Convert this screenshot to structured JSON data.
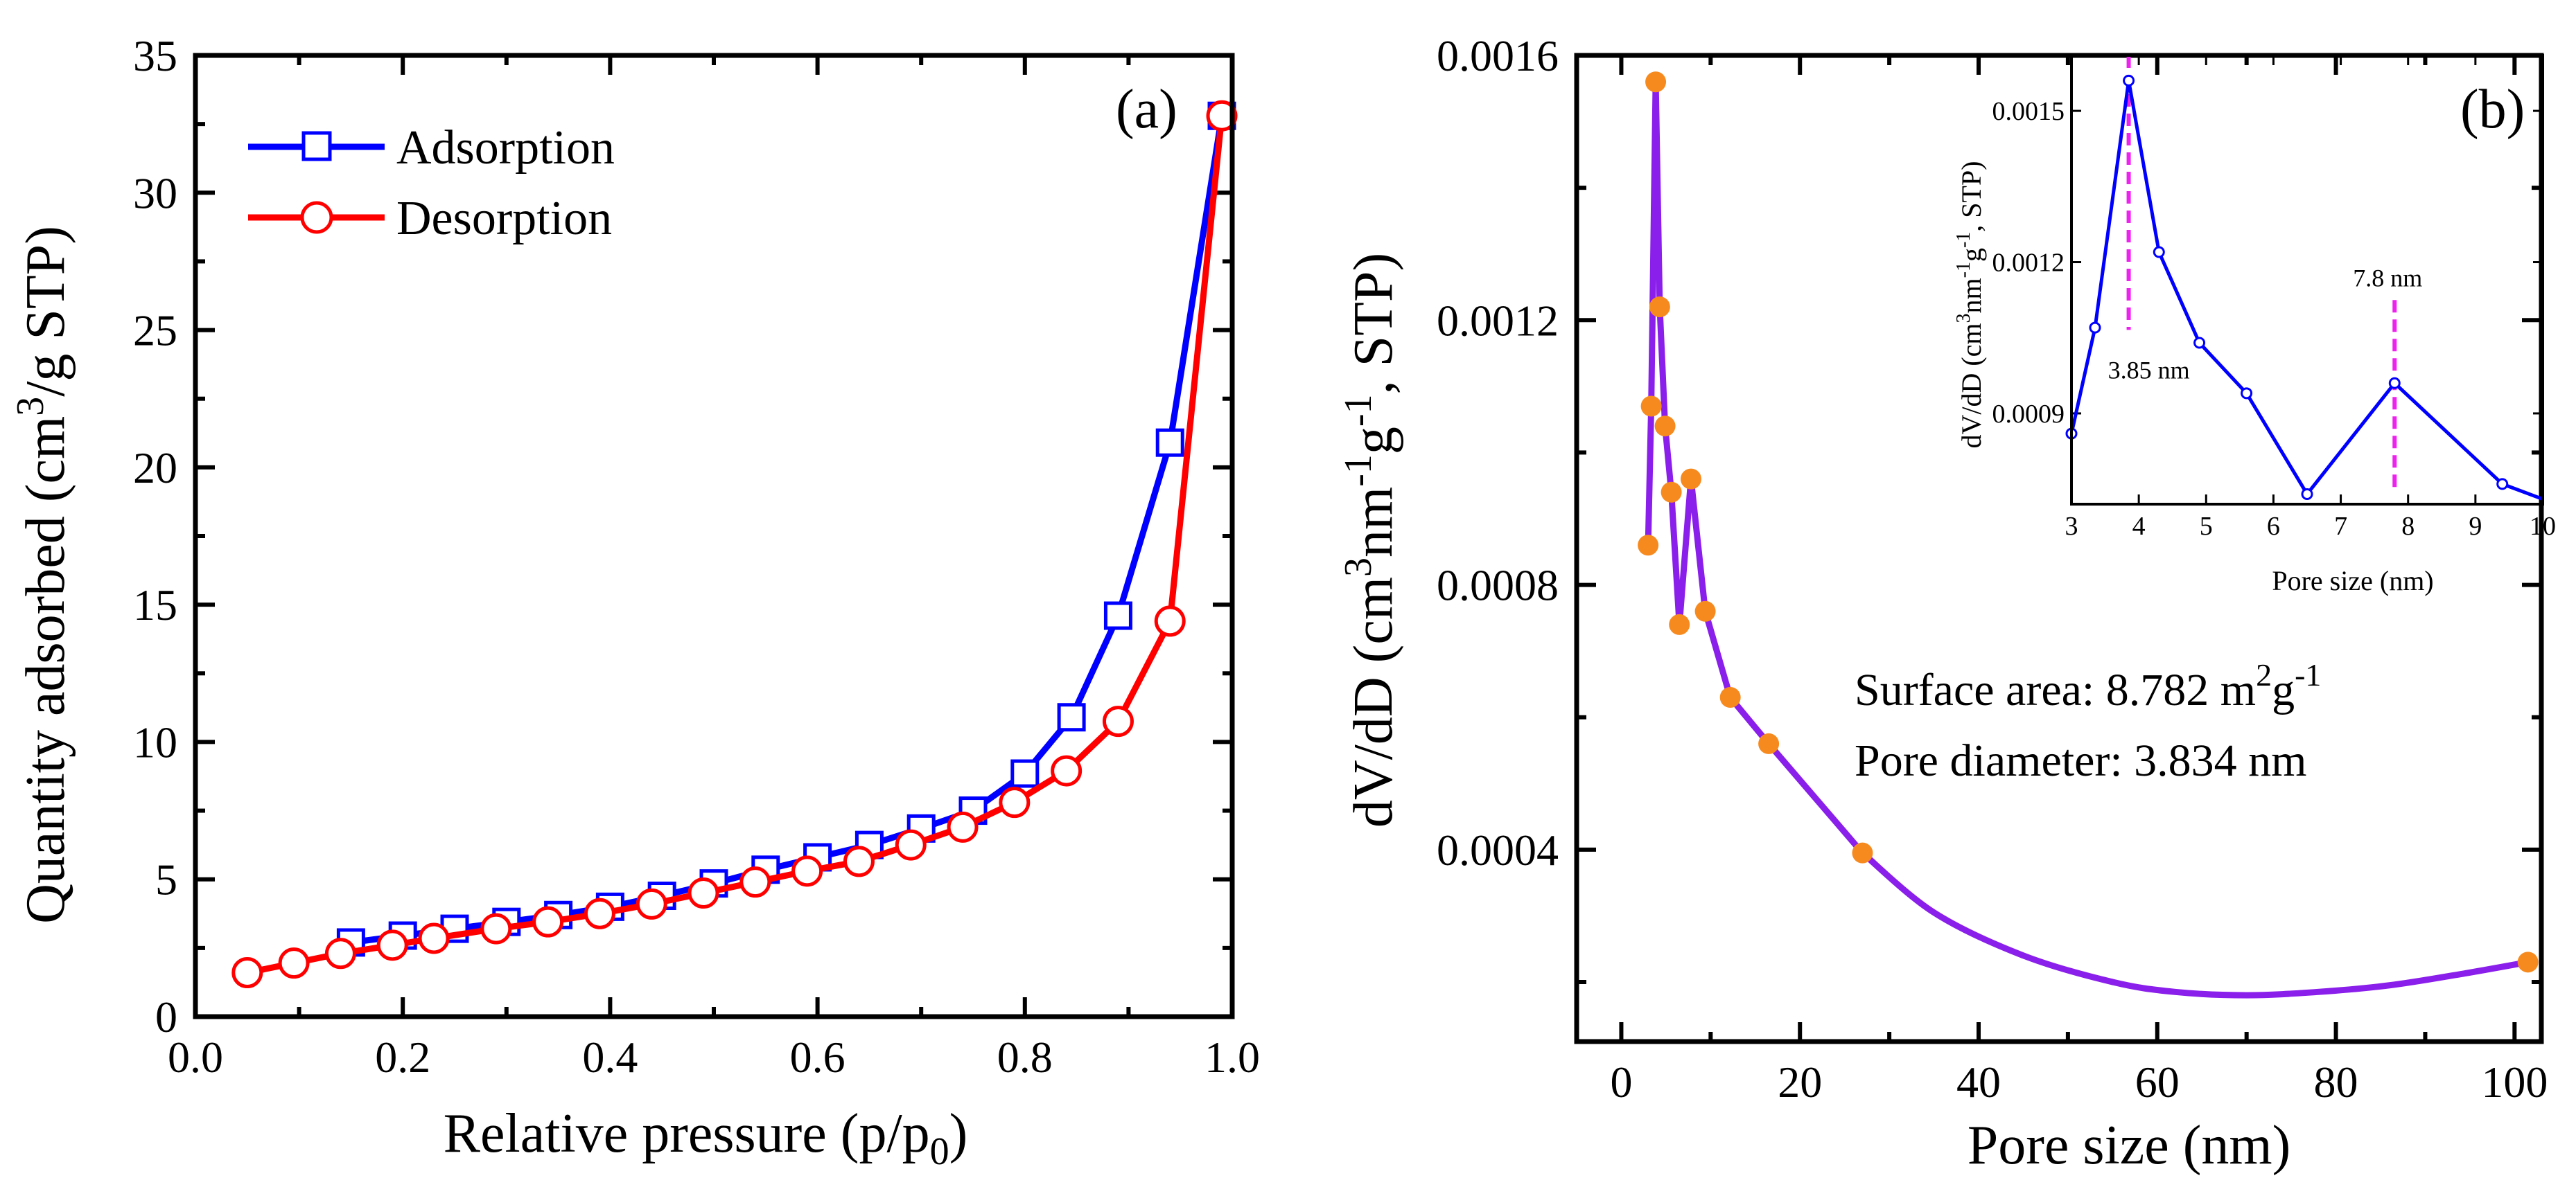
{
  "chart_data": [
    {
      "type": "line",
      "panel_label": "(a)",
      "xlabel": "Relative pressure (p/p",
      "xlabel_sub": "0",
      "xlabel_end": ")",
      "ylabel": "Quantity adsorbed (cm",
      "ylabel_sup": "3",
      "ylabel_end": "/g STP)",
      "xlim": [
        0.0,
        1.0
      ],
      "ylim": [
        0,
        35
      ],
      "xticks": [
        0.0,
        0.2,
        0.4,
        0.6,
        0.8,
        1.0
      ],
      "xtick_labels": [
        "0.0",
        "0.2",
        "0.4",
        "0.6",
        "0.8",
        "1.0"
      ],
      "yticks": [
        0,
        5,
        10,
        15,
        20,
        25,
        30,
        35
      ],
      "ytick_labels": [
        "0",
        "5",
        "10",
        "15",
        "20",
        "25",
        "30",
        "35"
      ],
      "legend_position": "top-left",
      "series": [
        {
          "name": "Adsorption",
          "color": "#0000ff",
          "marker": "square",
          "x": [
            0.15,
            0.2,
            0.25,
            0.3,
            0.35,
            0.4,
            0.45,
            0.5,
            0.55,
            0.6,
            0.65,
            0.7,
            0.75,
            0.8,
            0.845,
            0.89,
            0.94,
            0.99
          ],
          "y": [
            2.7,
            2.95,
            3.2,
            3.45,
            3.7,
            4.0,
            4.4,
            4.85,
            5.35,
            5.8,
            6.25,
            6.85,
            7.5,
            8.85,
            10.9,
            14.6,
            20.9,
            32.8
          ]
        },
        {
          "name": "Desorption",
          "color": "#ff0000",
          "marker": "circle",
          "x": [
            0.05,
            0.095,
            0.14,
            0.19,
            0.23,
            0.29,
            0.34,
            0.39,
            0.44,
            0.49,
            0.54,
            0.59,
            0.64,
            0.69,
            0.74,
            0.79,
            0.84,
            0.89,
            0.94,
            0.99
          ],
          "y": [
            1.6,
            1.95,
            2.3,
            2.6,
            2.85,
            3.2,
            3.45,
            3.75,
            4.1,
            4.5,
            4.9,
            5.3,
            5.65,
            6.25,
            6.9,
            7.8,
            8.95,
            10.75,
            14.4,
            32.8
          ]
        }
      ]
    },
    {
      "type": "line",
      "panel_label": "(b)",
      "xlabel": "Pore size (nm)",
      "ylabel": "dV/dD (cm",
      "ylabel_sup1": "3",
      "ylabel_mid1": "nm",
      "ylabel_sup2": "-1",
      "ylabel_mid2": "g",
      "ylabel_sup3": "-1",
      "ylabel_end": ", STP)",
      "xlim": [
        -5,
        103
      ],
      "ylim": [
        0.00011,
        0.0016
      ],
      "xticks": [
        0,
        20,
        40,
        60,
        80,
        100
      ],
      "xtick_labels": [
        "0",
        "20",
        "40",
        "60",
        "80",
        "100"
      ],
      "yticks": [
        0.0004,
        0.0008,
        0.0012,
        0.0016
      ],
      "ytick_labels": [
        "0.0004",
        "0.0008",
        "0.0012",
        "0.0016"
      ],
      "series": [
        {
          "name": "dV/dD",
          "line_color": "#8a1eea",
          "marker_color": "#f78a1f",
          "x": [
            3.0,
            3.35,
            3.85,
            4.3,
            4.9,
            5.6,
            6.5,
            7.8,
            9.4,
            12.2,
            16.5,
            27.0,
            101.5
          ],
          "y": [
            0.00086,
            0.00107,
            0.00156,
            0.00122,
            0.00104,
            0.00094,
            0.00074,
            0.00096,
            0.00076,
            0.00063,
            0.00056,
            0.000395,
            0.00023
          ]
        }
      ],
      "smooth_curve": {
        "x": [
          27.0,
          35,
          45,
          55,
          62,
          70,
          78,
          86,
          94,
          101.5
        ],
        "y": [
          0.000395,
          0.000305,
          0.00024,
          0.0002,
          0.000185,
          0.00018,
          0.000185,
          0.000195,
          0.000212,
          0.00023
        ]
      },
      "annotations": [
        {
          "label": "Surface area: 8.782 m",
          "sup1": "2",
          "mid": "g",
          "sup2": "-1"
        },
        {
          "label": "Pore diameter: 3.834 nm"
        }
      ]
    },
    {
      "type": "line",
      "panel_label": "inset",
      "xlabel": "Pore size (nm)",
      "ylabel": "dV/dD (cm",
      "ylabel_sup1": "3",
      "ylabel_mid1": "nm",
      "ylabel_sup2": "-1",
      "ylabel_mid2": "g",
      "ylabel_sup3": "-1",
      "ylabel_end": ", STP)",
      "xlim": [
        3,
        10
      ],
      "ylim": [
        0.00072,
        0.00161
      ],
      "xticks": [
        3,
        4,
        5,
        6,
        7,
        8,
        9,
        10
      ],
      "xtick_labels": [
        "3",
        "4",
        "5",
        "6",
        "7",
        "8",
        "9",
        "10"
      ],
      "yticks": [
        0.0009,
        0.0012,
        0.0015
      ],
      "ytick_labels": [
        "0.0009",
        "0.0012",
        "0.0015"
      ],
      "series": [
        {
          "name": "dV/dD inset",
          "color": "#0000ff",
          "x": [
            3.0,
            3.35,
            3.85,
            4.3,
            4.9,
            5.6,
            6.5,
            7.8,
            9.4,
            10.0
          ],
          "y": [
            0.00086,
            0.00107,
            0.00156,
            0.00122,
            0.00104,
            0.00094,
            0.00074,
            0.00096,
            0.00076,
            0.00073
          ]
        }
      ],
      "markers": [
        {
          "x": 3.85,
          "label": "3.85 nm",
          "color": "#ee22ee"
        },
        {
          "x": 7.8,
          "label": "7.8 nm",
          "color": "#ee22ee"
        }
      ]
    }
  ]
}
